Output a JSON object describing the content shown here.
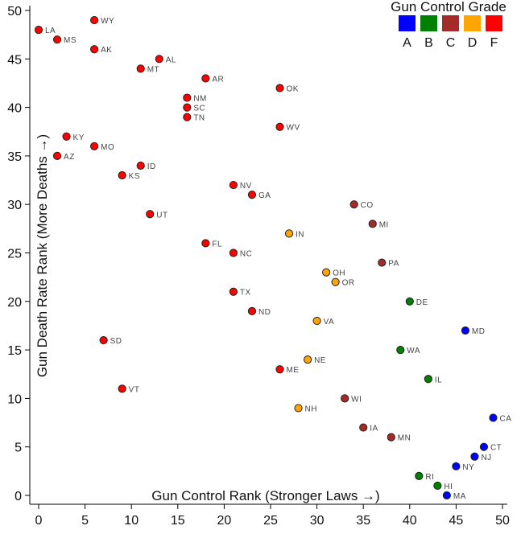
{
  "chart_data": {
    "type": "scatter",
    "title": "",
    "xlabel": "Gun Control Rank (Stronger Laws →)",
    "ylabel": "Gun Death Rate Rank (More Deaths →)",
    "xlim": [
      0,
      50
    ],
    "ylim": [
      0,
      50
    ],
    "xticks": [
      "0",
      "5",
      "10",
      "15",
      "20",
      "25",
      "30",
      "35",
      "40",
      "45",
      "50"
    ],
    "yticks": [
      "0",
      "5",
      "10",
      "15",
      "20",
      "25",
      "30",
      "35",
      "40",
      "45",
      "50"
    ],
    "grid": false,
    "legend": {
      "title": "Gun Control Grade",
      "placement": "top-right",
      "entries": [
        {
          "grade": "A",
          "color": "#0000ff"
        },
        {
          "grade": "B",
          "color": "#008000"
        },
        {
          "grade": "C",
          "color": "#a52a2a"
        },
        {
          "grade": "D",
          "color": "#ffa500"
        },
        {
          "grade": "F",
          "color": "#ff0000"
        }
      ]
    },
    "points": [
      {
        "state": "LA",
        "x": 0,
        "y": 48,
        "grade": "F"
      },
      {
        "state": "MS",
        "x": 2,
        "y": 47,
        "grade": "F"
      },
      {
        "state": "WY",
        "x": 6,
        "y": 49,
        "grade": "F"
      },
      {
        "state": "AK",
        "x": 6,
        "y": 46,
        "grade": "F"
      },
      {
        "state": "AL",
        "x": 13,
        "y": 45,
        "grade": "F"
      },
      {
        "state": "MT",
        "x": 11,
        "y": 44,
        "grade": "F"
      },
      {
        "state": "AR",
        "x": 18,
        "y": 43,
        "grade": "F"
      },
      {
        "state": "OK",
        "x": 26,
        "y": 42,
        "grade": "F"
      },
      {
        "state": "NM",
        "x": 16,
        "y": 41,
        "grade": "F"
      },
      {
        "state": "SC",
        "x": 16,
        "y": 40,
        "grade": "F"
      },
      {
        "state": "TN",
        "x": 16,
        "y": 39,
        "grade": "F"
      },
      {
        "state": "WV",
        "x": 26,
        "y": 38,
        "grade": "F"
      },
      {
        "state": "KY",
        "x": 3,
        "y": 37,
        "grade": "F"
      },
      {
        "state": "MO",
        "x": 6,
        "y": 36,
        "grade": "F"
      },
      {
        "state": "AZ",
        "x": 2,
        "y": 35,
        "grade": "F"
      },
      {
        "state": "ID",
        "x": 11,
        "y": 34,
        "grade": "F"
      },
      {
        "state": "KS",
        "x": 9,
        "y": 33,
        "grade": "F"
      },
      {
        "state": "NV",
        "x": 21,
        "y": 32,
        "grade": "F"
      },
      {
        "state": "GA",
        "x": 23,
        "y": 31,
        "grade": "F"
      },
      {
        "state": "CO",
        "x": 34,
        "y": 30,
        "grade": "C"
      },
      {
        "state": "UT",
        "x": 12,
        "y": 29,
        "grade": "F"
      },
      {
        "state": "MI",
        "x": 36,
        "y": 28,
        "grade": "C"
      },
      {
        "state": "IN",
        "x": 27,
        "y": 27,
        "grade": "D"
      },
      {
        "state": "FL",
        "x": 18,
        "y": 26,
        "grade": "F"
      },
      {
        "state": "NC",
        "x": 21,
        "y": 25,
        "grade": "F"
      },
      {
        "state": "PA",
        "x": 37,
        "y": 24,
        "grade": "C"
      },
      {
        "state": "OH",
        "x": 31,
        "y": 23,
        "grade": "D"
      },
      {
        "state": "OR",
        "x": 32,
        "y": 22,
        "grade": "D"
      },
      {
        "state": "TX",
        "x": 21,
        "y": 21,
        "grade": "F"
      },
      {
        "state": "DE",
        "x": 40,
        "y": 20,
        "grade": "B"
      },
      {
        "state": "ND",
        "x": 23,
        "y": 19,
        "grade": "F"
      },
      {
        "state": "VA",
        "x": 30,
        "y": 18,
        "grade": "D"
      },
      {
        "state": "MD",
        "x": 46,
        "y": 17,
        "grade": "A"
      },
      {
        "state": "SD",
        "x": 7,
        "y": 16,
        "grade": "F"
      },
      {
        "state": "WA",
        "x": 39,
        "y": 15,
        "grade": "B"
      },
      {
        "state": "NE",
        "x": 29,
        "y": 14,
        "grade": "D"
      },
      {
        "state": "ME",
        "x": 26,
        "y": 13,
        "grade": "F"
      },
      {
        "state": "IL",
        "x": 42,
        "y": 12,
        "grade": "B"
      },
      {
        "state": "VT",
        "x": 9,
        "y": 11,
        "grade": "F"
      },
      {
        "state": "WI",
        "x": 33,
        "y": 10,
        "grade": "C"
      },
      {
        "state": "NH",
        "x": 28,
        "y": 9,
        "grade": "D"
      },
      {
        "state": "CA",
        "x": 49,
        "y": 8,
        "grade": "A"
      },
      {
        "state": "IA",
        "x": 35,
        "y": 7,
        "grade": "C"
      },
      {
        "state": "MN",
        "x": 38,
        "y": 6,
        "grade": "C"
      },
      {
        "state": "CT",
        "x": 48,
        "y": 5,
        "grade": "A"
      },
      {
        "state": "NJ",
        "x": 47,
        "y": 4,
        "grade": "A"
      },
      {
        "state": "NY",
        "x": 45,
        "y": 3,
        "grade": "A"
      },
      {
        "state": "RI",
        "x": 41,
        "y": 2,
        "grade": "B"
      },
      {
        "state": "HI",
        "x": 43,
        "y": 1,
        "grade": "B"
      },
      {
        "state": "MA",
        "x": 44,
        "y": 0,
        "grade": "A"
      }
    ]
  }
}
